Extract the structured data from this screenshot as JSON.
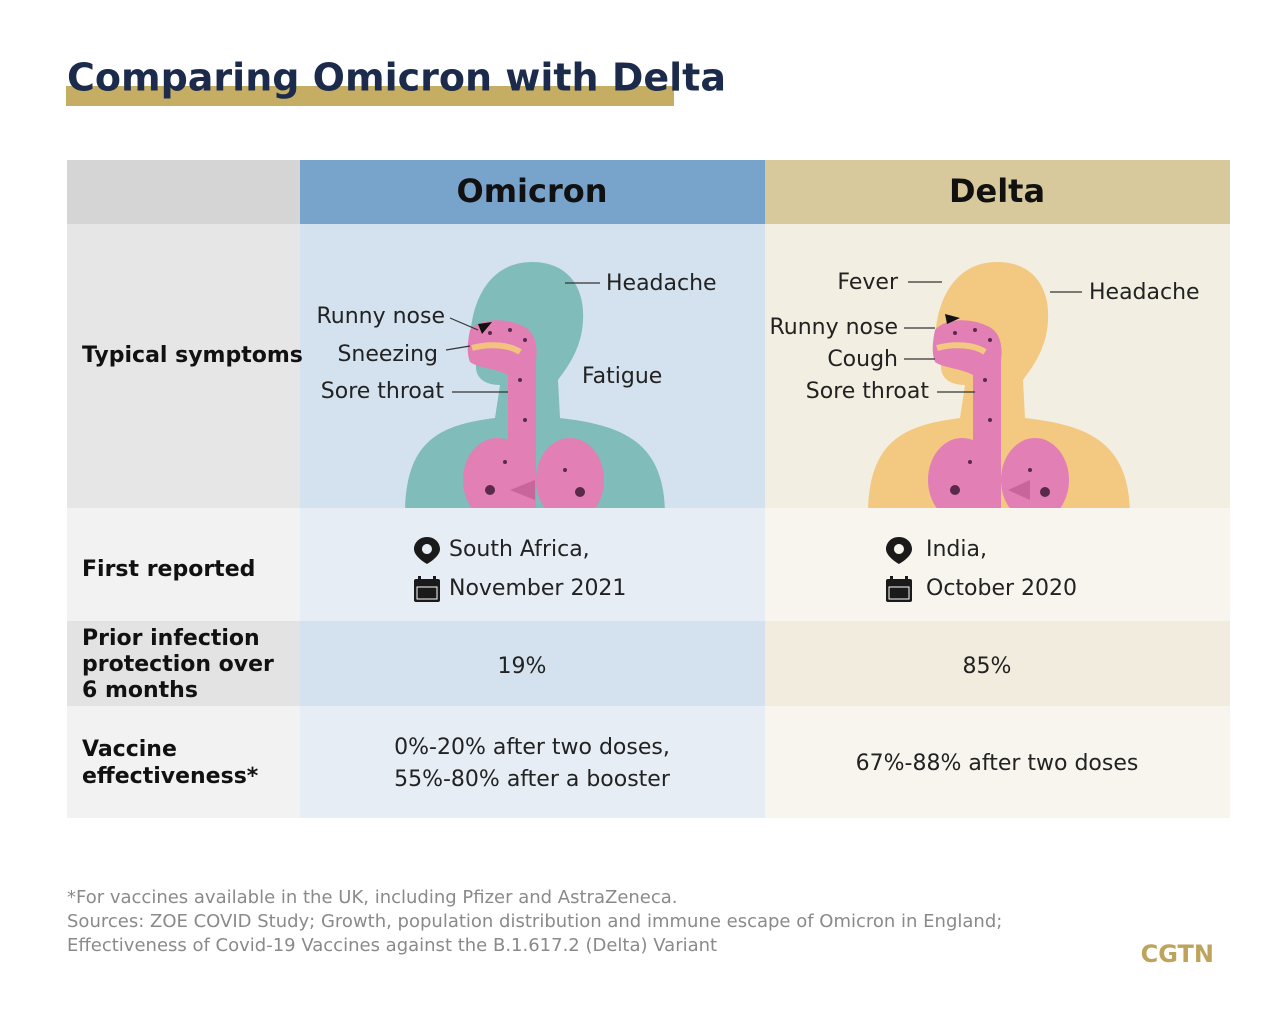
{
  "title": "Comparing Omicron with Delta",
  "table": {
    "columns": [
      "Omicron",
      "Delta"
    ],
    "rows": [
      {
        "label": [
          "Typical symptoms"
        ],
        "cells": [
          [
            "Headache",
            "Runny nose",
            "Sneezing",
            "Sore throat",
            "Fatigue"
          ],
          [
            "Fever",
            "Headache",
            "Runny nose",
            "Cough",
            "Sore throat"
          ]
        ]
      },
      {
        "label": [
          "First reported"
        ],
        "cells": [
          [
            "South Africa,",
            "November 2021"
          ],
          [
            "India,",
            "October 2020"
          ]
        ]
      },
      {
        "label": [
          "Prior infection",
          "protection over",
          "6 months"
        ],
        "cells": [
          [
            "19%"
          ],
          [
            "85%"
          ]
        ]
      },
      {
        "label": [
          "Vaccine",
          "effectiveness*"
        ],
        "cells": [
          [
            "0%-20% after two doses,",
            "55%-80% after a booster"
          ],
          [
            "67%-88% after two doses"
          ]
        ]
      }
    ]
  },
  "footnotes": [
    "*For vaccines available in the UK, including Pfizer and AstraZeneca.",
    "Sources: ZOE COVID Study; Growth, population distribution and immune escape of Omicron in England;",
    "Effectiveness of Covid-19 Vaccines against the B.1.617.2 (Delta) Variant"
  ],
  "logo": "CGTN"
}
